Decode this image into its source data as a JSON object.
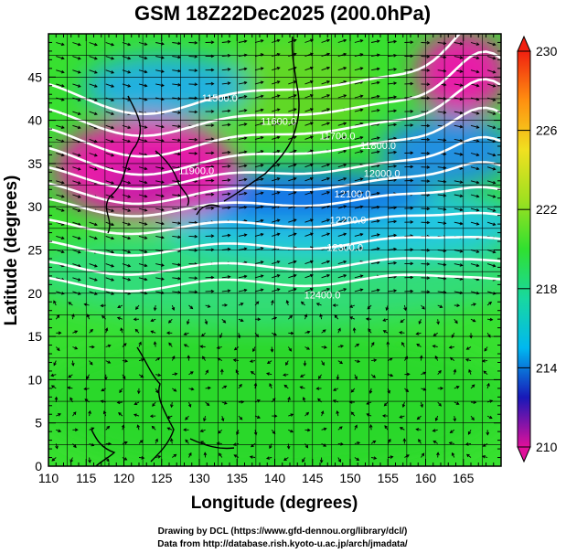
{
  "chart_data": {
    "type": "heatmap",
    "title": "GSM 18Z22Dec2025 (200.0hPa)",
    "xlabel": "Longitude (degrees)",
    "ylabel": "Latitude  (degrees)",
    "xlim": [
      110,
      170
    ],
    "ylim": [
      0,
      50
    ],
    "xticks": [
      "110",
      "115",
      "120",
      "125",
      "130",
      "135",
      "140",
      "145",
      "150",
      "155",
      "160",
      "165"
    ],
    "yticks": [
      "0",
      "5",
      "10",
      "15",
      "20",
      "25",
      "30",
      "35",
      "40",
      "45"
    ],
    "colorbar": {
      "range": [
        210,
        230
      ],
      "labels": [
        "230",
        "226",
        "222",
        "218",
        "214",
        "210"
      ],
      "colors": [
        "#e0109a",
        "#1818b8",
        "#00b8f0",
        "#18d8a0",
        "#30e030",
        "#a0e020",
        "#f0e020",
        "#ff9010",
        "#f02010"
      ]
    },
    "contours": [
      {
        "label": "11500.0",
        "lon": 132.7,
        "lat": 42.6
      },
      {
        "label": "11600.0",
        "lon": 140.5,
        "lat": 39.9
      },
      {
        "label": "11700.0",
        "lon": 148.3,
        "lat": 38.2
      },
      {
        "label": "11800.0",
        "lon": 153.7,
        "lat": 37.1
      },
      {
        "label": "11900.0",
        "lon": 129.6,
        "lat": 34.2
      },
      {
        "label": "12000.0",
        "lon": 154.2,
        "lat": 33.9
      },
      {
        "label": "12100.0",
        "lon": 150.3,
        "lat": 31.5
      },
      {
        "label": "12200.0",
        "lon": 149.7,
        "lat": 28.5
      },
      {
        "label": "12300.0",
        "lon": 149.3,
        "lat": 25.3
      },
      {
        "label": "12400.0",
        "lon": 146.3,
        "lat": 19.8
      }
    ]
  },
  "credits": {
    "line1": "Drawing by DCL (https://www.gfd-dennou.org/library/dcl/)",
    "line2": "Data from http://database.rish.kyoto-u.ac.jp/arch/jmadata/"
  }
}
